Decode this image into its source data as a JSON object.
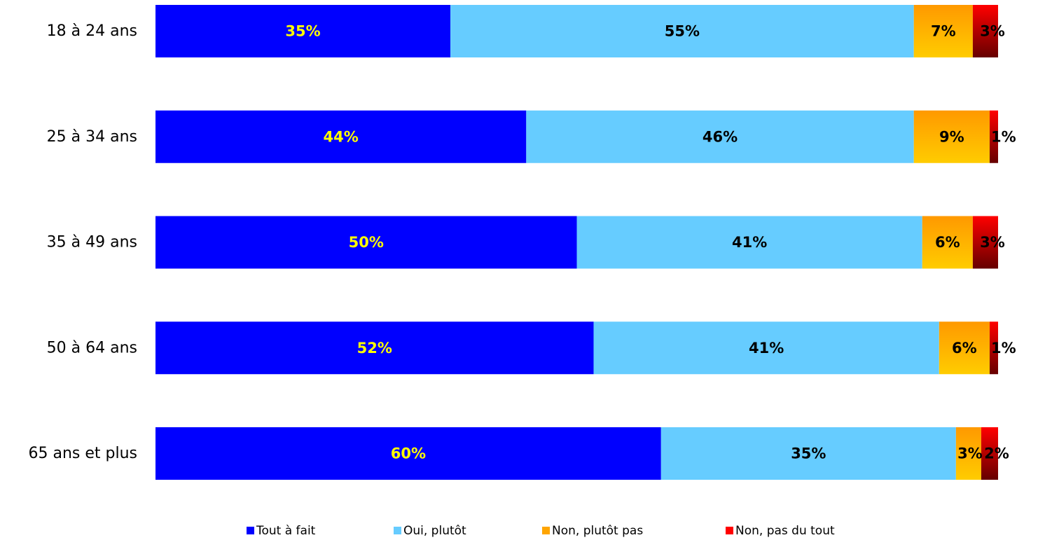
{
  "chart_data": {
    "type": "bar",
    "orientation": "horizontal",
    "stacked": true,
    "categories": [
      "18 à 24 ans",
      "25 à 34 ans",
      "35 à 49 ans",
      "50 à 64 ans",
      "65 ans et plus"
    ],
    "xlim": [
      0,
      100
    ],
    "grid": false,
    "legend_position": "bottom",
    "series": [
      {
        "name": "Tout à fait",
        "values": [
          35,
          44,
          50,
          52,
          60
        ],
        "labels": [
          "35%",
          "44%",
          "50%",
          "52%",
          "60%"
        ],
        "color": "#0000FF",
        "label_color": "#FFFF00"
      },
      {
        "name": "Oui, plutôt",
        "values": [
          55,
          46,
          41,
          41,
          35
        ],
        "labels": [
          "55%",
          "46%",
          "41%",
          "41%",
          "35%"
        ],
        "color": "#66CCFF",
        "label_color": "#000000"
      },
      {
        "name": "Non, plutôt pas",
        "values": [
          7,
          9,
          6,
          6,
          3
        ],
        "labels": [
          "7%",
          "9%",
          "6%",
          "6%",
          "3%"
        ],
        "color": "#FFA500",
        "label_color": "#000000"
      },
      {
        "name": "Non, pas du tout",
        "values": [
          3,
          1,
          3,
          1,
          2
        ],
        "labels": [
          "3%",
          "1%",
          "3%",
          "1%",
          "2%"
        ],
        "color": "#FF0000",
        "label_color": "#000000"
      }
    ]
  }
}
